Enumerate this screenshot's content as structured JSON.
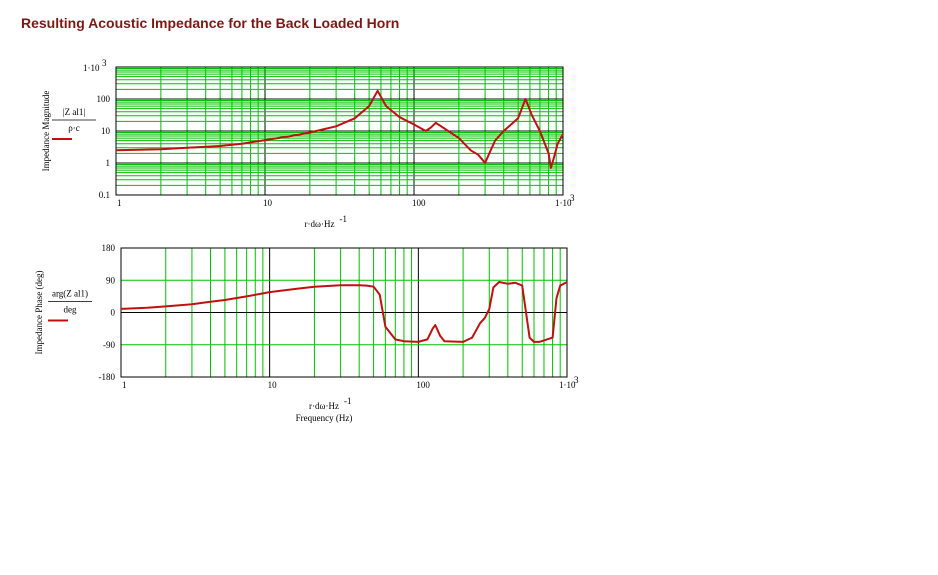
{
  "page_title": "Resulting Acoustic Impedance for the Back Loaded Horn",
  "colors": {
    "title": "#7a1a14",
    "grid": "#00c000",
    "trace": "#c01010",
    "axis": "#000000"
  },
  "chart_data": [
    {
      "type": "line",
      "xscale": "log",
      "yscale": "log",
      "xlim": [
        1,
        1000
      ],
      "ylim": [
        0.1,
        1000
      ],
      "grid": true,
      "xtick_labels": [
        "1",
        "10",
        "100",
        "1·10³"
      ],
      "ytick_labels": [
        "0.1",
        "1",
        "10",
        "100",
        "1·10³"
      ],
      "ylabel": "Impedance Magnitude",
      "ylabel_expr_num": "|Z al1|",
      "ylabel_expr_den": "ρ·c",
      "xlabel_expr": "r·dω·Hz⁻¹",
      "series": [
        {
          "x": [
            1,
            2,
            3,
            5,
            7,
            10,
            15,
            20,
            30,
            40,
            50,
            57,
            65,
            80,
            100,
            120,
            130,
            140,
            160,
            200,
            240,
            270,
            300,
            320,
            350,
            400,
            500,
            560,
            620,
            700,
            800,
            830,
            870,
            920,
            1000
          ],
          "y": [
            2.5,
            2.7,
            3,
            3.4,
            4,
            5.2,
            7,
            9,
            14,
            25,
            60,
            180,
            60,
            27,
            16,
            10,
            13,
            18,
            12,
            6,
            2.5,
            1.8,
            1,
            2,
            5,
            10,
            25,
            100,
            30,
            10,
            2,
            0.7,
            1.5,
            4,
            8
          ]
        }
      ]
    },
    {
      "type": "line",
      "xscale": "log",
      "xlim": [
        1,
        1000
      ],
      "ylim": [
        -180,
        180
      ],
      "grid": true,
      "xtick_labels": [
        "1",
        "10",
        "100",
        "1·10³"
      ],
      "ytick_labels": [
        "180",
        "90",
        "0",
        "-90",
        "-180"
      ],
      "ylabel": "Impedance Phase (deg)",
      "ylabel_expr_num": "arg(Z al1)",
      "ylabel_expr_den": "deg",
      "xlabel_expr": "r·dω·Hz⁻¹",
      "xlabel": "Frequency (Hz)",
      "series": [
        {
          "x": [
            1,
            1.5,
            2,
            3,
            4,
            5,
            7,
            10,
            15,
            20,
            30,
            40,
            45,
            50,
            55,
            60,
            70,
            80,
            100,
            115,
            125,
            130,
            140,
            150,
            200,
            230,
            260,
            280,
            300,
            320,
            350,
            400,
            450,
            500,
            560,
            600,
            650,
            700,
            800,
            850,
            900,
            950,
            1000
          ],
          "y": [
            10,
            13,
            17,
            23,
            30,
            35,
            45,
            57,
            66,
            72,
            76,
            76,
            75,
            72,
            50,
            -40,
            -75,
            -80,
            -82,
            -75,
            -45,
            -35,
            -65,
            -80,
            -82,
            -70,
            -30,
            -15,
            10,
            70,
            85,
            80,
            83,
            75,
            -70,
            -82,
            -82,
            -78,
            -70,
            40,
            75,
            80,
            85
          ]
        }
      ]
    }
  ]
}
